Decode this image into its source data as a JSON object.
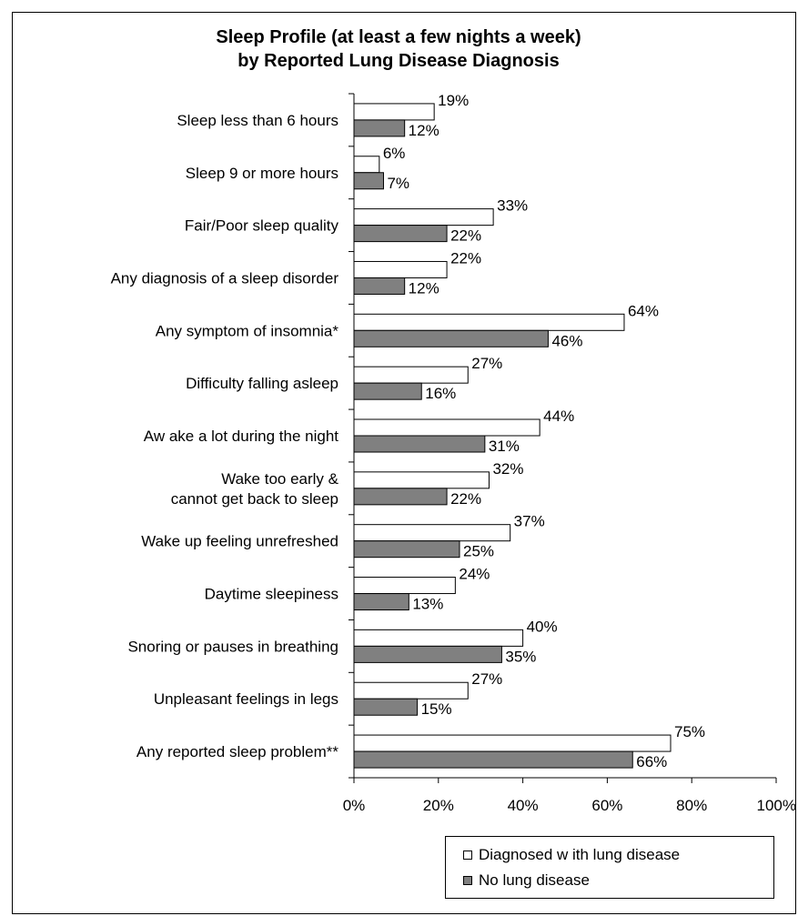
{
  "chart_data": {
    "type": "bar",
    "orientation": "horizontal",
    "title": [
      "Sleep Profile (at least a few nights a week)",
      "by Reported Lung Disease Diagnosis"
    ],
    "categories": [
      [
        "Sleep less than 6 hours"
      ],
      [
        "Sleep 9 or more hours"
      ],
      [
        "Fair/Poor sleep quality"
      ],
      [
        "Any diagnosis of a sleep disorder"
      ],
      [
        "Any symptom of insomnia*"
      ],
      [
        "Difficulty falling asleep"
      ],
      [
        "Aw ake a lot during the night"
      ],
      [
        "Wake too early &",
        "cannot get back to sleep"
      ],
      [
        "Wake up feeling unrefreshed"
      ],
      [
        "Daytime sleepiness"
      ],
      [
        "Snoring or pauses in breathing"
      ],
      [
        "Unpleasant feelings in legs"
      ],
      [
        "Any reported sleep problem**"
      ]
    ],
    "series": [
      {
        "name": "Diagnosed w ith lung disease",
        "color": "#ffffff",
        "values": [
          19,
          6,
          33,
          22,
          64,
          27,
          44,
          32,
          37,
          24,
          40,
          27,
          75
        ]
      },
      {
        "name": "No lung disease",
        "color": "#808080",
        "values": [
          12,
          7,
          22,
          12,
          46,
          16,
          31,
          22,
          25,
          13,
          35,
          15,
          66
        ]
      }
    ],
    "data_labels": [
      [
        "19%",
        "6%",
        "33%",
        "22%",
        "64%",
        "27%",
        "44%",
        "32%",
        "37%",
        "24%",
        "40%",
        "27%",
        "75%"
      ],
      [
        "12%",
        "7%",
        "22%",
        "12%",
        "46%",
        "16%",
        "31%",
        "22%",
        "25%",
        "13%",
        "35%",
        "15%",
        "66%"
      ]
    ],
    "xlim": [
      0,
      100
    ],
    "xticks": [
      0,
      20,
      40,
      60,
      80,
      100
    ],
    "xtick_labels": [
      "0%",
      "20%",
      "40%",
      "60%",
      "80%",
      "100%"
    ],
    "xlabel": "",
    "ylabel": "",
    "grid": false,
    "legend_position": "bottom-right"
  }
}
